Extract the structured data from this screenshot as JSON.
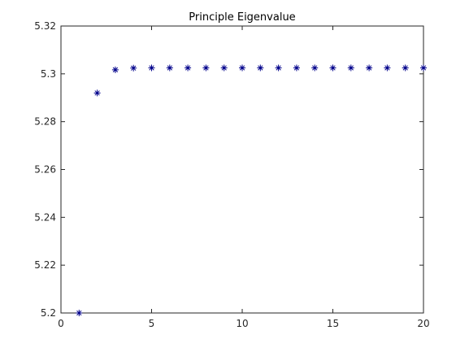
{
  "chart_data": {
    "type": "scatter",
    "title": "Principle Eigenvalue",
    "xlabel": "",
    "ylabel": "",
    "xlim": [
      0,
      20
    ],
    "ylim": [
      5.2,
      5.32
    ],
    "xticks": [
      0,
      5,
      10,
      15,
      20
    ],
    "yticks": [
      5.2,
      5.22,
      5.24,
      5.26,
      5.28,
      5.3,
      5.32
    ],
    "xtick_labels": [
      "0",
      "5",
      "10",
      "15",
      "20"
    ],
    "ytick_labels": [
      "5.2",
      "5.22",
      "5.24",
      "5.26",
      "5.28",
      "5.3",
      "5.32"
    ],
    "marker": "asterisk",
    "marker_color": "#00008b",
    "grid": false,
    "series": [
      {
        "x": [
          1,
          2,
          3,
          4,
          5,
          6,
          7,
          8,
          9,
          10,
          11,
          12,
          13,
          14,
          15,
          16,
          17,
          18,
          19,
          20
        ],
        "y": [
          5.2,
          5.292,
          5.3017,
          5.3024,
          5.3025,
          5.3025,
          5.3025,
          5.3025,
          5.3025,
          5.3025,
          5.3025,
          5.3025,
          5.3025,
          5.3025,
          5.3025,
          5.3025,
          5.3025,
          5.3025,
          5.3025,
          5.3025
        ]
      }
    ]
  }
}
